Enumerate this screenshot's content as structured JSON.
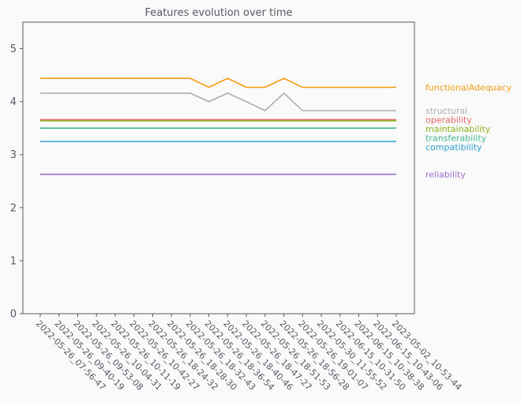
{
  "chart_data": {
    "type": "line",
    "title": "Features evolution over time",
    "xlabel": "",
    "ylabel": "",
    "ylim": [
      0,
      5.5
    ],
    "yticks": [
      0,
      1,
      2,
      3,
      4,
      5
    ],
    "grid": false,
    "legend_placement": "right",
    "x": [
      "2022-05-26_07-56-47",
      "2022-05-26_09-40-19",
      "2022-05-26_09-53-08",
      "2022-05-26_10-04-31",
      "2022-05-26_10-11-19",
      "2022-05-26_10-42-27",
      "2022-05-26_18-24-32",
      "2022-05-26_18-28-30",
      "2022-05-26_18-32-43",
      "2022-05-26_18-36-54",
      "2022-05-26_18-40-46",
      "2022-05-26_18-47-27",
      "2022-05-26_18-51-53",
      "2022-05-26_18-56-28",
      "2022-05-26_19-01-07",
      "2022-05-30_11-55-52",
      "2022-06-15_10-31-50",
      "2022-06-15_10-38-38",
      "2022-06-15_10-43-06",
      "2023-05-02_10-53-44"
    ],
    "series": [
      {
        "name": "functionalAdequacy",
        "color": "#f39c12",
        "values": [
          4.44,
          4.44,
          4.44,
          4.44,
          4.44,
          4.44,
          4.44,
          4.44,
          4.44,
          4.27,
          4.44,
          4.27,
          4.27,
          4.44,
          4.27,
          4.27,
          4.27,
          4.27,
          4.27,
          4.27
        ]
      },
      {
        "name": "structural",
        "color": "#aeaeae",
        "values": [
          4.16,
          4.16,
          4.16,
          4.16,
          4.16,
          4.16,
          4.16,
          4.16,
          4.16,
          4.0,
          4.16,
          4.0,
          3.83,
          4.16,
          3.83,
          3.83,
          3.83,
          3.83,
          3.83,
          3.83
        ]
      },
      {
        "name": "operability",
        "color": "#e86a6a",
        "values": [
          3.66,
          3.66,
          3.66,
          3.66,
          3.66,
          3.66,
          3.66,
          3.66,
          3.66,
          3.66,
          3.66,
          3.66,
          3.66,
          3.66,
          3.66,
          3.66,
          3.66,
          3.66,
          3.66,
          3.66
        ]
      },
      {
        "name": "maintainability",
        "color": "#8db31c",
        "values": [
          3.64,
          3.64,
          3.64,
          3.64,
          3.64,
          3.64,
          3.64,
          3.64,
          3.64,
          3.64,
          3.64,
          3.64,
          3.64,
          3.64,
          3.64,
          3.64,
          3.64,
          3.64,
          3.64,
          3.64
        ]
      },
      {
        "name": "transferability",
        "color": "#45b98a",
        "values": [
          3.5,
          3.5,
          3.5,
          3.5,
          3.5,
          3.5,
          3.5,
          3.5,
          3.5,
          3.5,
          3.5,
          3.5,
          3.5,
          3.5,
          3.5,
          3.5,
          3.5,
          3.5,
          3.5,
          3.5
        ]
      },
      {
        "name": "compatibility",
        "color": "#2e9fd1",
        "values": [
          3.25,
          3.25,
          3.25,
          3.25,
          3.25,
          3.25,
          3.25,
          3.25,
          3.25,
          3.25,
          3.25,
          3.25,
          3.25,
          3.25,
          3.25,
          3.25,
          3.25,
          3.25,
          3.25,
          3.25
        ]
      },
      {
        "name": "reliability",
        "color": "#9b6fd1",
        "values": [
          2.63,
          2.63,
          2.63,
          2.63,
          2.63,
          2.63,
          2.63,
          2.63,
          2.63,
          2.63,
          2.63,
          2.63,
          2.63,
          2.63,
          2.63,
          2.63,
          2.63,
          2.63,
          2.63,
          2.63
        ]
      }
    ]
  }
}
